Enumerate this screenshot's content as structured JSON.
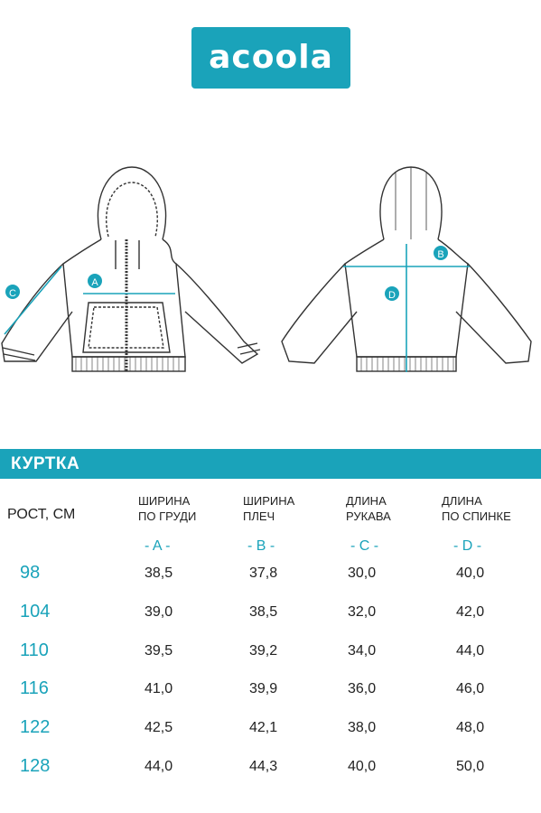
{
  "brand": {
    "logo_text": "acoola",
    "color": "#1aa3ba"
  },
  "diagram": {
    "markers": {
      "a": "A",
      "b": "B",
      "c": "C",
      "d": "D"
    },
    "front_view": "jacket-front-drawing",
    "back_view": "jacket-back-drawing"
  },
  "table": {
    "title": "КУРТКА",
    "first_col_header": "РОСТ, СМ",
    "columns": [
      {
        "line1": "ШИРИНА",
        "line2": "ПО ГРУДИ",
        "code": "- A -"
      },
      {
        "line1": "ШИРИНА",
        "line2": "ПЛЕЧ",
        "code": "- B -"
      },
      {
        "line1": "ДЛИНА",
        "line2": "РУКАВА",
        "code": "- C -"
      },
      {
        "line1": "ДЛИНА",
        "line2": "ПО СПИНКЕ",
        "code": "- D -"
      }
    ],
    "rows": [
      {
        "height": "98",
        "values": [
          "38,5",
          "37,8",
          "30,0",
          "40,0"
        ]
      },
      {
        "height": "104",
        "values": [
          "39,0",
          "38,5",
          "32,0",
          "42,0"
        ]
      },
      {
        "height": "110",
        "values": [
          "39,5",
          "39,2",
          "34,0",
          "44,0"
        ]
      },
      {
        "height": "116",
        "values": [
          "41,0",
          "39,9",
          "36,0",
          "46,0"
        ]
      },
      {
        "height": "122",
        "values": [
          "42,5",
          "42,1",
          "38,0",
          "48,0"
        ]
      },
      {
        "height": "128",
        "values": [
          "44,0",
          "44,3",
          "40,0",
          "50,0"
        ]
      }
    ]
  }
}
